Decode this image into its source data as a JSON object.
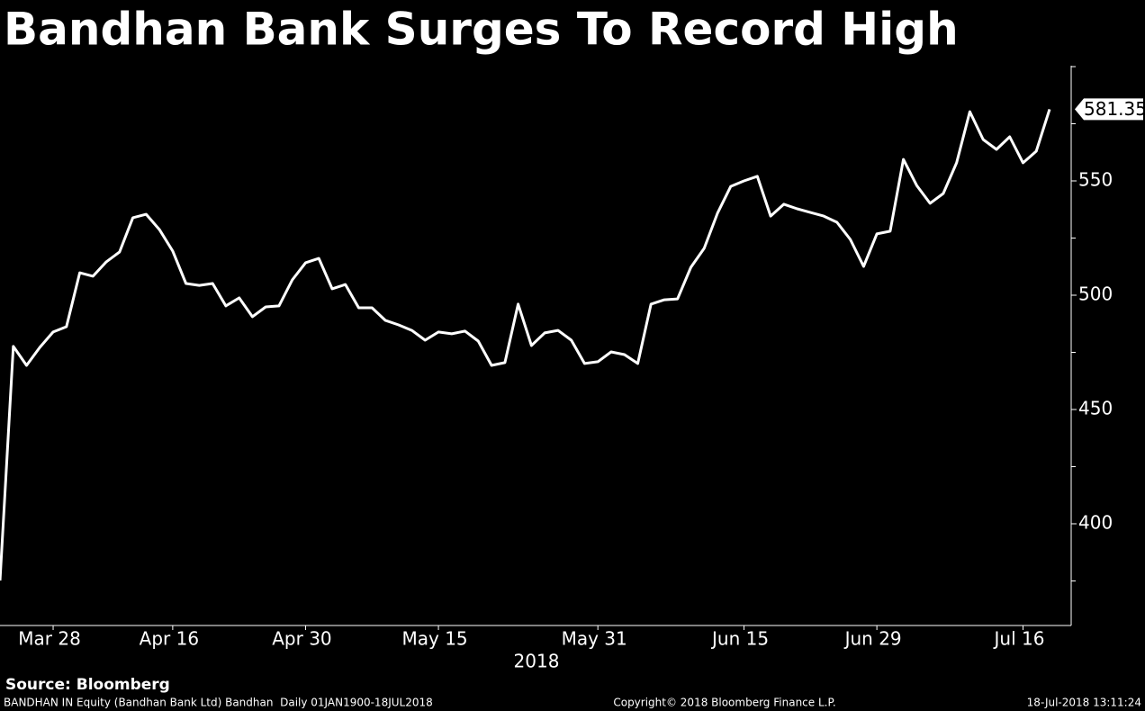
{
  "chart_data": {
    "type": "line",
    "title": "Bandhan Bank Surges To Record High",
    "categories": [
      null,
      null,
      null,
      null,
      "Mar 28",
      null,
      null,
      null,
      null,
      null,
      null,
      null,
      null,
      "Apr 16",
      null,
      null,
      null,
      null,
      null,
      null,
      null,
      null,
      null,
      "Apr 30",
      null,
      null,
      null,
      null,
      null,
      null,
      null,
      null,
      null,
      "May 15",
      null,
      null,
      null,
      null,
      null,
      null,
      null,
      null,
      null,
      null,
      null,
      "May 31",
      null,
      null,
      null,
      null,
      null,
      null,
      null,
      null,
      null,
      null,
      "Jun 15",
      null,
      null,
      null,
      null,
      null,
      null,
      null,
      null,
      null,
      "Jun 29",
      null,
      null,
      null,
      null,
      null,
      null,
      null,
      null,
      null,
      null,
      "Jul 16",
      null,
      null
    ],
    "x_axis_label": "2018",
    "values": [
      375.2,
      477.6,
      469.3,
      477.2,
      483.9,
      486.2,
      509.8,
      508.3,
      514.6,
      518.9,
      533.9,
      535.4,
      528.7,
      519.3,
      505.1,
      504.3,
      505.1,
      495.3,
      498.8,
      490.6,
      494.9,
      495.3,
      506.7,
      514.2,
      516.1,
      502.8,
      504.7,
      494.5,
      494.5,
      489.0,
      487.0,
      484.6,
      480.3,
      483.9,
      483.1,
      484.3,
      479.9,
      469.3,
      470.5,
      496.1,
      478.0,
      483.5,
      484.6,
      480.3,
      470.1,
      470.9,
      475.2,
      474.0,
      470.1,
      496.1,
      498.0,
      498.4,
      512.2,
      520.5,
      535.8,
      547.6,
      550.0,
      552.0,
      534.6,
      539.8,
      537.8,
      536.2,
      534.6,
      531.9,
      524.4,
      512.6,
      526.8,
      528.0,
      559.4,
      548.0,
      540.2,
      544.5,
      557.9,
      580.3,
      568.1,
      563.8,
      569.3,
      557.9,
      563.0,
      581.35
    ],
    "color": "#ffffff",
    "ylim": [
      355.5,
      600.4
    ],
    "yticks": [
      400,
      450,
      500,
      550
    ],
    "minor_yticks": [
      375,
      425,
      475,
      525,
      575,
      600
    ]
  },
  "source": "Source: Bloomberg",
  "footer": {
    "left": "BANDHAN IN Equity (Bandhan Bank Ltd) Bandhan  Daily 01JAN1900-18JUL2018",
    "center": "Copyright© 2018 Bloomberg Finance L.P.",
    "right": "18-Jul-2018 13:11:24"
  }
}
